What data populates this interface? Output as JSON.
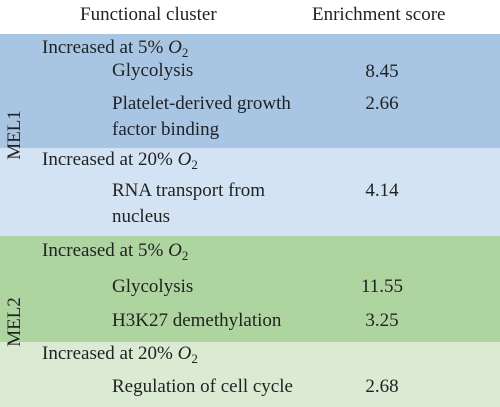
{
  "header": {
    "col_cluster": "Functional cluster",
    "col_score": "Enrichment score"
  },
  "groups": [
    {
      "label": "MEL1",
      "conditions": [
        {
          "prefix": "Increased at",
          "level": "5%",
          "var": "O",
          "sub": "2",
          "color": "#a8c6e4",
          "rows": [
            {
              "term": "Glycolysis",
              "score": "8.45"
            },
            {
              "term": "Platelet-derived growth factor binding",
              "score": "2.66"
            }
          ]
        },
        {
          "prefix": "Increased at",
          "level": "20%",
          "var": "O",
          "sub": "2",
          "color": "#d3e3f3",
          "rows": [
            {
              "term": "RNA transport from nucleus",
              "score": "4.14"
            }
          ]
        }
      ]
    },
    {
      "label": "MEL2",
      "conditions": [
        {
          "prefix": "Increased at",
          "level": "5%",
          "var": "O",
          "sub": "2",
          "color": "#aed4a0",
          "rows": [
            {
              "term": "Glycolysis",
              "score": "11.55"
            },
            {
              "term": "H3K27 demethylation",
              "score": "3.25"
            }
          ]
        },
        {
          "prefix": "Increased at",
          "level": "20%",
          "var": "O",
          "sub": "2",
          "color": "#dbebd3",
          "rows": [
            {
              "term": "Regulation of cell cycle",
              "score": "2.68"
            }
          ]
        }
      ]
    }
  ]
}
